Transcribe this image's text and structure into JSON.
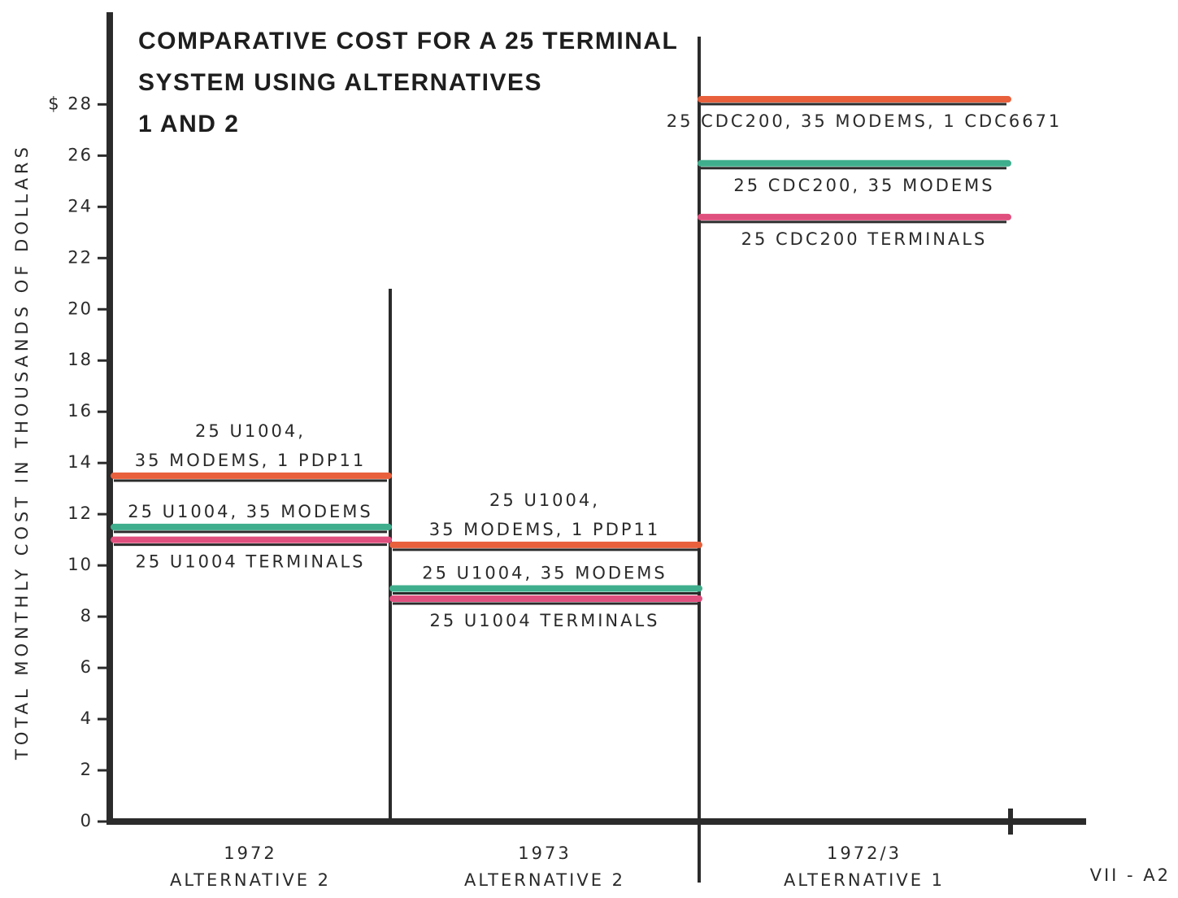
{
  "chart_data": {
    "type": "level",
    "title": [
      "COMPARATIVE COST FOR A 25 TERMINAL",
      "SYSTEM USING ALTERNATIVES",
      "1 AND 2"
    ],
    "ylabel": "TOTAL MONTHLY COST IN THOUSANDS OF DOLLARS",
    "categories": [
      "1972",
      "1973",
      "1972/3"
    ],
    "category_subtitles": [
      "ALTERNATIVE 2",
      "ALTERNATIVE 2",
      "ALTERNATIVE 1"
    ],
    "series": [
      {
        "color": "#e8603c",
        "values": [
          13.5,
          10.8,
          28.2
        ],
        "labels": [
          [
            "25 U1004,",
            "35 MODEMS, 1 PDP11"
          ],
          [
            "25 U1004,",
            "35 MODEMS, 1 PDP11"
          ],
          [
            "25 CDC200, 35 MODEMS, 1 CDC6671"
          ]
        ]
      },
      {
        "color": "#3fae8c",
        "values": [
          11.5,
          9.1,
          25.7
        ],
        "labels": [
          [
            "25 U1004, 35 MODEMS"
          ],
          [
            "25 U1004, 35 MODEMS"
          ],
          [
            "25 CDC200, 35 MODEMS"
          ]
        ]
      },
      {
        "color": "#e0507e",
        "values": [
          11.0,
          8.7,
          23.6
        ],
        "labels": [
          [
            "25 U1004 TERMINALS"
          ],
          [
            "25 U1004 TERMINALS"
          ],
          [
            "25 CDC200 TERMINALS"
          ]
        ]
      }
    ],
    "ylim": [
      0,
      31.6
    ],
    "yticks": [
      0,
      2,
      4,
      6,
      8,
      10,
      12,
      14,
      16,
      18,
      20,
      22,
      24,
      26,
      {
        "value": 28,
        "label": "$ 28"
      }
    ],
    "page_number": "VII - A2"
  }
}
